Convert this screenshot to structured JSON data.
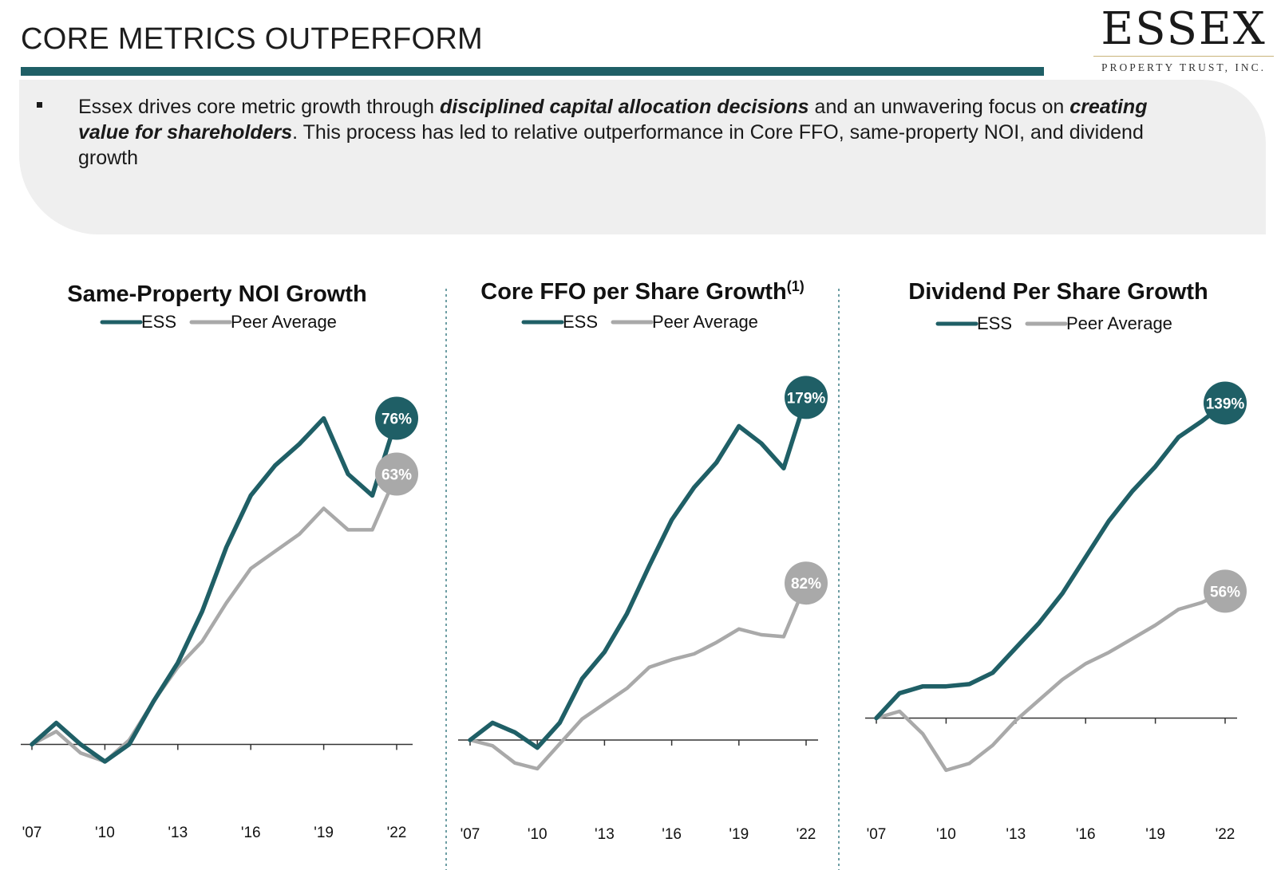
{
  "header": {
    "title": "CORE METRICS OUTPERFORM",
    "logo_word": "ESSEX",
    "logo_sub": "PROPERTY TRUST, INC."
  },
  "summary": {
    "part1": "Essex drives core metric growth through ",
    "emph1": "disciplined capital allocation decisions",
    "part2": " and an unwavering focus on ",
    "emph2": "creating value for shareholders",
    "part3": ". This process has led to relative outperformance in Core FFO, same-property NOI, and dividend growth"
  },
  "colors": {
    "ess": "#1f5f66",
    "peer": "#a9a9a9",
    "rule": "#1f5f66"
  },
  "chart_data": [
    {
      "type": "line",
      "title": "Same-Property NOI Growth",
      "title_sup": "",
      "x": [
        "'07",
        "'08",
        "'09",
        "'10",
        "'11",
        "'12",
        "'13",
        "'14",
        "'15",
        "'16",
        "'17",
        "'18",
        "'19",
        "'20",
        "'21",
        "'22"
      ],
      "tick_labels": [
        "'07",
        "'10",
        "'13",
        "'16",
        "'19",
        "'22"
      ],
      "tick_positions": [
        "'07",
        "'10",
        "'13",
        "'16",
        "'19",
        "'22"
      ],
      "series": [
        {
          "name": "ESS",
          "values": [
            0,
            5,
            0,
            -4,
            0,
            10,
            19,
            31,
            46,
            58,
            65,
            70,
            76,
            63,
            58,
            76
          ]
        },
        {
          "name": "Peer Average",
          "values": [
            0,
            3,
            -2,
            -4,
            1,
            10,
            18,
            24,
            33,
            41,
            45,
            49,
            55,
            50,
            50,
            63
          ]
        }
      ],
      "end_labels": [
        "76%",
        "63%"
      ],
      "ylim": [
        -12,
        88
      ],
      "legend": "top-center"
    },
    {
      "type": "line",
      "title": "Core FFO per Share Growth",
      "title_sup": "(1)",
      "x": [
        "'07",
        "'08",
        "'09",
        "'10",
        "'11",
        "'12",
        "'13",
        "'14",
        "'15",
        "'16",
        "'17",
        "'18",
        "'19",
        "'20",
        "'21",
        "'22"
      ],
      "tick_labels": [
        "'07",
        "'10",
        "'13",
        "'16",
        "'19",
        "'22"
      ],
      "tick_positions": [
        "'07",
        "'10",
        "'13",
        "'16",
        "'19",
        "'22"
      ],
      "series": [
        {
          "name": "ESS",
          "values": [
            0,
            9,
            4,
            -4,
            9,
            32,
            46,
            66,
            91,
            115,
            132,
            145,
            164,
            155,
            142,
            179
          ]
        },
        {
          "name": "Peer Average",
          "values": [
            0,
            -3,
            -12,
            -15,
            -2,
            11,
            19,
            27,
            38,
            42,
            45,
            51,
            58,
            55,
            54,
            82
          ]
        }
      ],
      "end_labels": [
        "179%",
        "82%"
      ],
      "ylim": [
        -30,
        195
      ],
      "legend": "top-center"
    },
    {
      "type": "line",
      "title": "Dividend Per Share Growth",
      "title_sup": "",
      "x": [
        "'07",
        "'08",
        "'09",
        "'10",
        "'11",
        "'12",
        "'13",
        "'14",
        "'15",
        "'16",
        "'17",
        "'18",
        "'19",
        "'20",
        "'21",
        "'22"
      ],
      "tick_labels": [
        "'07",
        "'10",
        "'13",
        "'16",
        "'19",
        "'22"
      ],
      "tick_positions": [
        "'07",
        "'10",
        "'13",
        "'16",
        "'19",
        "'22"
      ],
      "series": [
        {
          "name": "ESS",
          "values": [
            0,
            11,
            14,
            14,
            15,
            20,
            31,
            42,
            55,
            71,
            87,
            100,
            111,
            124,
            131,
            139
          ]
        },
        {
          "name": "Peer Average",
          "values": [
            0,
            3,
            -7,
            -23,
            -20,
            -12,
            -1,
            8,
            17,
            24,
            29,
            35,
            41,
            48,
            51,
            56
          ]
        }
      ],
      "end_labels": [
        "139%",
        "56%"
      ],
      "ylim": [
        -35,
        155
      ],
      "legend": "top-center"
    }
  ]
}
